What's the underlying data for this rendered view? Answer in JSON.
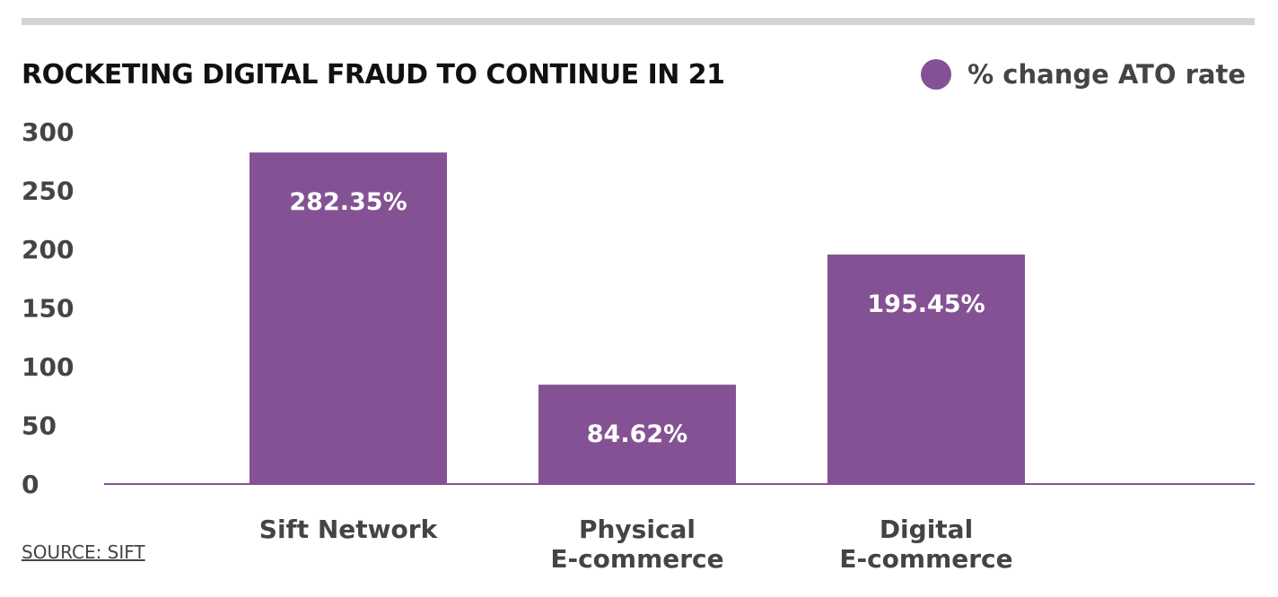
{
  "chart_data": {
    "type": "bar",
    "title": "ROCKETING DIGITAL FRAUD TO CONTINUE IN 21",
    "categories": [
      [
        "Sift Network"
      ],
      [
        "Physical",
        "E-commerce"
      ],
      [
        "Digital",
        "E-commerce"
      ]
    ],
    "series": [
      {
        "name": "% change ATO rate",
        "values": [
          282.35,
          84.62,
          195.45
        ],
        "labels": [
          "282.35%",
          "84.62%",
          "195.45%"
        ],
        "color": "#845294"
      }
    ],
    "y_ticks": [
      "0",
      "50",
      "100",
      "150",
      "200",
      "250",
      "300"
    ],
    "ylim": [
      0,
      300
    ],
    "grid": false,
    "legend_position": "top-right",
    "xlabel": "",
    "ylabel": ""
  },
  "source": "SOURCE: SIFT",
  "colors": {
    "bar": "#845294",
    "text": "#444444",
    "rule": "#d4d4d4"
  }
}
